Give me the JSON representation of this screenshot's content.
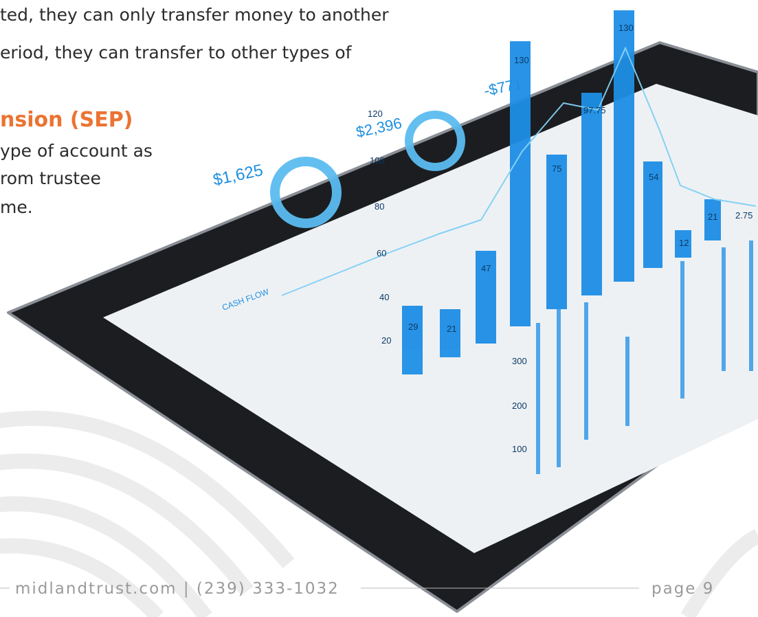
{
  "body": {
    "lines": [
      "ted, they can only transfer money to another",
      "eriod, they can transfer to other types of"
    ],
    "heading": "nsion (SEP)",
    "paragraph": [
      "ype of account as",
      "rom trustee",
      "me."
    ]
  },
  "illustration": {
    "labels": [
      "$1,625",
      "$2,396",
      "-$771",
      "29",
      "21",
      "47",
      "130",
      "75",
      "97.75",
      "130",
      "54",
      "12",
      "21",
      "2.75",
      "20",
      "40",
      "60",
      "80",
      "100",
      "120",
      "300",
      "200",
      "100",
      "CASH FLOW"
    ]
  },
  "footer": {
    "contact": "midlandtrust.com | (239) 333-1032",
    "page": "page 9"
  }
}
